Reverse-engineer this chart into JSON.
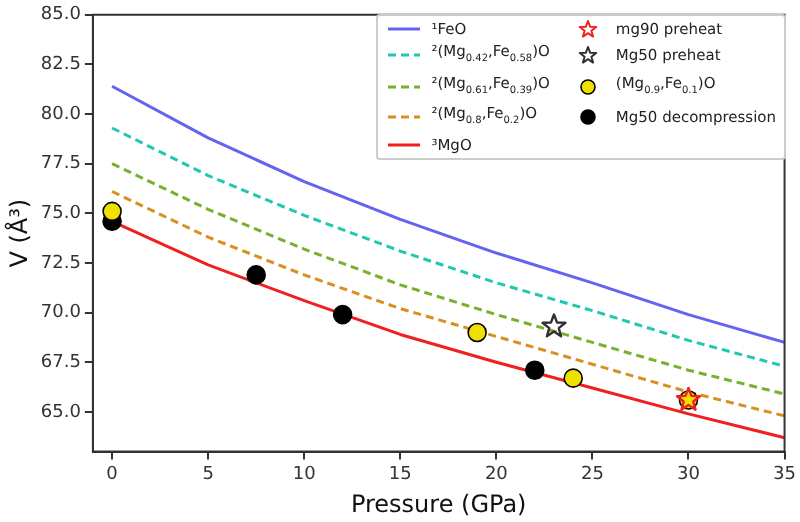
{
  "chart_data": {
    "type": "line",
    "xlabel": "Pressure (GPa)",
    "ylabel": "V (Å³)",
    "xlim": [
      -1,
      35
    ],
    "xticks": [
      0,
      5,
      10,
      15,
      20,
      25,
      30,
      35
    ],
    "ylim": [
      63,
      85
    ],
    "yticks": [
      {
        "value": 65,
        "label": "65.0"
      },
      {
        "value": 67.5,
        "label": "67.5"
      },
      {
        "value": 70,
        "label": "70.0"
      },
      {
        "value": 72.5,
        "label": "72.5"
      },
      {
        "value": 75,
        "label": "75.0"
      },
      {
        "value": 77.5,
        "label": "77.5"
      },
      {
        "value": 80,
        "label": "80.0"
      },
      {
        "value": 82.5,
        "label": "82.5"
      },
      {
        "value": 85,
        "label": "85.0"
      }
    ],
    "grid": false,
    "legend": "top right",
    "series": [
      {
        "name": "¹FeO",
        "line_style": "solid",
        "marker": "none",
        "color": "#6464f0",
        "x": [
          0,
          5,
          10,
          15,
          20,
          25,
          30,
          35
        ],
        "values": [
          81.4,
          78.8,
          76.6,
          74.7,
          73.0,
          71.5,
          69.9,
          68.5
        ]
      },
      {
        "name": "²(Mg$_{0.42}$,Fe$_{0.58}$)O",
        "line_style": "dashed",
        "marker": "none",
        "color": "#20c8b0",
        "x": [
          0,
          5,
          10,
          15,
          20,
          25,
          30,
          35
        ],
        "values": [
          79.3,
          76.9,
          74.9,
          73.1,
          71.5,
          70.1,
          68.6,
          67.3
        ]
      },
      {
        "name": "²(Mg$_{0.61}$,Fe$_{0.39}$)O",
        "line_style": "dashed",
        "marker": "none",
        "color": "#78b030",
        "x": [
          0,
          5,
          10,
          15,
          20,
          25,
          30,
          35
        ],
        "values": [
          77.5,
          75.2,
          73.2,
          71.4,
          69.9,
          68.5,
          67.1,
          65.9
        ]
      },
      {
        "name": "²(Mg$_{0.8}$,Fe$_{0.2}$)O",
        "line_style": "dashed",
        "marker": "none",
        "color": "#d89020",
        "x": [
          0,
          5,
          10,
          15,
          20,
          25,
          30,
          35
        ],
        "values": [
          76.1,
          73.8,
          71.9,
          70.2,
          68.8,
          67.4,
          66.0,
          64.8
        ]
      },
      {
        "name": "³MgO",
        "line_style": "solid",
        "marker": "none",
        "color": "#f02020",
        "x": [
          0,
          5,
          10,
          15,
          20,
          25,
          30,
          35
        ],
        "values": [
          74.6,
          72.4,
          70.6,
          68.9,
          67.5,
          66.2,
          64.9,
          63.7
        ]
      },
      {
        "name": "(Mg$_{0.9}$,Fe$_{0.1}$)O",
        "type": "scatter",
        "marker": "circle",
        "color": "#f0e000",
        "x": [
          0,
          19,
          24,
          30
        ],
        "values": [
          75.1,
          69.0,
          66.7,
          65.6
        ]
      },
      {
        "name": "Mg50 decompression",
        "type": "scatter",
        "marker": "circle",
        "color": "#000000",
        "x": [
          0,
          7.5,
          12,
          22
        ],
        "values": [
          74.6,
          71.9,
          69.9,
          67.1
        ]
      },
      {
        "name": "mg90 preheat",
        "type": "scatter",
        "marker": "star",
        "color": "#f02020",
        "x": [
          30
        ],
        "values": [
          65.6
        ]
      },
      {
        "name": "Mg50 preheat",
        "type": "scatter",
        "marker": "star",
        "color": "#303030",
        "x": [
          23
        ],
        "values": [
          69.3
        ]
      }
    ]
  }
}
